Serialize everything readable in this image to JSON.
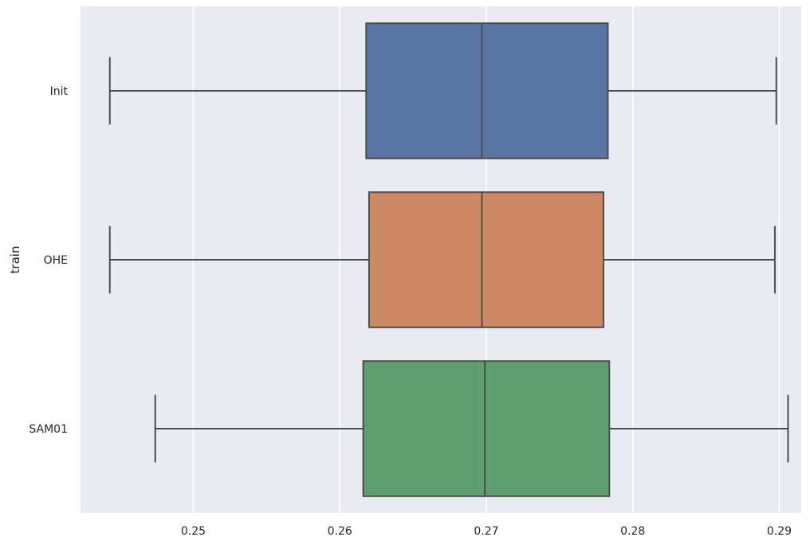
{
  "chart_data": {
    "type": "box",
    "orientation": "horizontal",
    "title": "",
    "xlabel": "",
    "ylabel": "train",
    "xlim": [
      0.2423,
      0.2915
    ],
    "xticks": [
      0.25,
      0.26,
      0.27,
      0.28,
      0.29
    ],
    "xtick_labels": [
      "0.25",
      "0.26",
      "0.27",
      "0.28",
      "0.29"
    ],
    "grid": true,
    "background": "#eaeaf2",
    "grid_color": "#ffffff",
    "line_color": "#4d4d4d",
    "categories": [
      "Init",
      "OHE",
      "SAM01"
    ],
    "boxes": [
      {
        "label": "Init",
        "whisker_low": 0.2443,
        "q1": 0.2618,
        "median": 0.2697,
        "q3": 0.2783,
        "whisker_high": 0.2898,
        "color": "#5875a4"
      },
      {
        "label": "OHE",
        "whisker_low": 0.2443,
        "q1": 0.262,
        "median": 0.2697,
        "q3": 0.278,
        "whisker_high": 0.2897,
        "color": "#cc8963"
      },
      {
        "label": "SAM01",
        "whisker_low": 0.2474,
        "q1": 0.2616,
        "median": 0.2699,
        "q3": 0.2784,
        "whisker_high": 0.2906,
        "color": "#5f9e6e"
      }
    ]
  }
}
